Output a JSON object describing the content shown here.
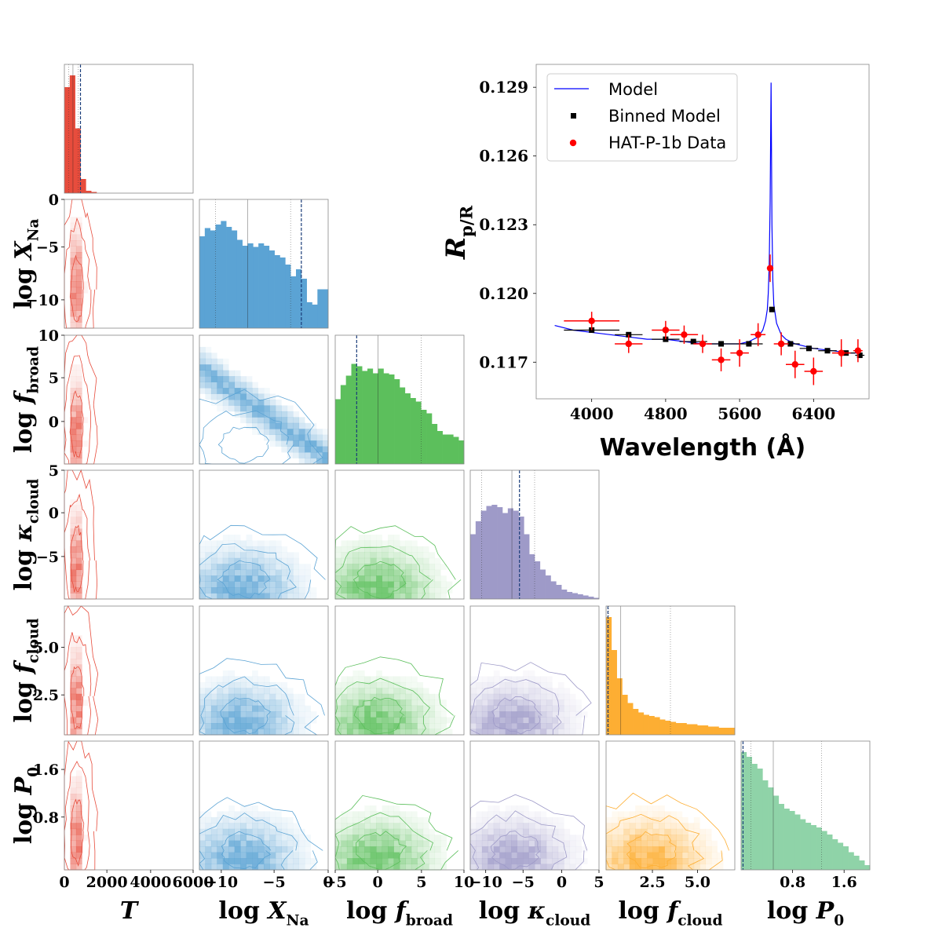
{
  "figure": {
    "kind": "corner plot with inset spectrum"
  },
  "chart_data": [
    {
      "type": "scatter",
      "name": "transmission-spectrum",
      "title": "",
      "xlabel": "Wavelength (Å)",
      "ylabel": "R_p/R_⋆",
      "xlim": [
        3400,
        7000
      ],
      "ylim": [
        0.1154,
        0.13
      ],
      "xticks": [
        4000,
        4800,
        5600,
        6400
      ],
      "xtick_labels": [
        "4000",
        "4800",
        "5600",
        "6400"
      ],
      "yticks": [
        0.117,
        0.12,
        0.123,
        0.126,
        0.129
      ],
      "ytick_labels": [
        "0.117",
        "0.120",
        "0.123",
        "0.126",
        "0.129"
      ],
      "legend_position": "top-left",
      "legend": [
        "Model",
        "Binned Model",
        "HAT-P-1b Data"
      ],
      "series": [
        {
          "name": "Model",
          "color": "#0000ff",
          "x": [
            3600,
            3800,
            4000,
            4200,
            4400,
            4600,
            4800,
            5000,
            5200,
            5400,
            5600,
            5700,
            5800,
            5850,
            5880,
            5900,
            5910,
            5920,
            5930,
            5940,
            5950,
            5960,
            5970,
            6000,
            6050,
            6100,
            6200,
            6400,
            6600,
            6800,
            6900
          ],
          "y": [
            0.1186,
            0.1184,
            0.1183,
            0.1182,
            0.1181,
            0.118,
            0.118,
            0.1179,
            0.1178,
            0.1178,
            0.1178,
            0.1179,
            0.1181,
            0.1184,
            0.1188,
            0.1193,
            0.12,
            0.1212,
            0.124,
            0.1292,
            0.123,
            0.1205,
            0.1195,
            0.1187,
            0.1182,
            0.118,
            0.1178,
            0.1176,
            0.1175,
            0.1174,
            0.1174
          ]
        },
        {
          "name": "Binned Model",
          "color": "#000000",
          "x": [
            4000,
            4400,
            4800,
            5100,
            5400,
            5700,
            5950,
            6150,
            6350,
            6550,
            6750,
            6900
          ],
          "y": [
            0.1184,
            0.1182,
            0.118,
            0.1179,
            0.1178,
            0.1178,
            0.1193,
            0.1178,
            0.1176,
            0.1175,
            0.1174,
            0.1173
          ],
          "xerr": [
            300,
            150,
            150,
            150,
            150,
            150,
            30,
            100,
            100,
            100,
            100,
            50
          ]
        },
        {
          "name": "HAT-P-1b Data",
          "color": "#ff0000",
          "x": [
            4000,
            4400,
            4800,
            5000,
            5200,
            5400,
            5600,
            5800,
            5930,
            6050,
            6200,
            6400,
            6700,
            6880
          ],
          "y": [
            0.1188,
            0.1178,
            0.1184,
            0.1182,
            0.1178,
            0.1171,
            0.1174,
            0.1182,
            0.1211,
            0.1178,
            0.1169,
            0.1166,
            0.1174,
            0.1175
          ],
          "yerr": [
            0.0004,
            0.0004,
            0.0004,
            0.0004,
            0.0004,
            0.0005,
            0.0006,
            0.0005,
            0.0006,
            0.0005,
            0.0006,
            0.0006,
            0.0006,
            0.0005
          ],
          "xerr": [
            300,
            150,
            150,
            150,
            100,
            100,
            100,
            80,
            30,
            80,
            100,
            100,
            100,
            50
          ]
        }
      ]
    },
    {
      "type": "corner",
      "name": "posterior-corner",
      "parameters": [
        {
          "key": "T",
          "label": "T",
          "range": [
            0,
            6000
          ],
          "color": "#e74c3c",
          "ticks": [
            2000,
            4000,
            6000
          ],
          "tick_labels": [
            "2000",
            "4000",
            "6000"
          ],
          "hist": [
            0.9,
            1.0,
            0.55,
            0.12,
            0.02,
            0.01,
            0.0,
            0.0,
            0.0,
            0.0,
            0.0,
            0.0,
            0.0,
            0.0,
            0.0,
            0.0,
            0.0,
            0.0,
            0.0,
            0.0,
            0.0,
            0.0,
            0.0,
            0.0
          ],
          "bins_used": 24,
          "lines": {
            "median": 400,
            "low": 200,
            "high": 650,
            "best": 750
          }
        },
        {
          "key": "logX",
          "label": "log X_Na",
          "range": [
            -12,
            0
          ],
          "color": "#5ba3d4",
          "ticks": [
            -10,
            -5,
            0
          ],
          "tick_labels": [
            "−10",
            "−5",
            "0"
          ],
          "hist": [
            0.78,
            0.85,
            0.83,
            0.88,
            0.91,
            0.86,
            0.83,
            0.75,
            0.7,
            0.72,
            0.69,
            0.72,
            0.7,
            0.66,
            0.62,
            0.6,
            0.54,
            0.44,
            0.5,
            0.42,
            0.22,
            0.2,
            0.33,
            0.33
          ],
          "lines": {
            "median": -7.5,
            "low": -10.5,
            "high": -3.5,
            "best": -2.5
          }
        },
        {
          "key": "logfb",
          "label": "log f_broad",
          "range": [
            -5,
            10
          ],
          "color": "#5cbf5c",
          "ticks": [
            -5,
            0,
            5,
            10
          ],
          "tick_labels": [
            "−5",
            "0",
            "5",
            "10"
          ],
          "hist": [
            0.55,
            0.67,
            0.75,
            0.85,
            0.83,
            0.79,
            0.81,
            0.77,
            0.81,
            0.77,
            0.76,
            0.72,
            0.65,
            0.6,
            0.56,
            0.53,
            0.46,
            0.43,
            0.34,
            0.28,
            0.25,
            0.25,
            0.23,
            0.2
          ],
          "lines": {
            "median": 0,
            "low": -2.5,
            "high": 5,
            "best": -2.5
          }
        },
        {
          "key": "logk",
          "label": "log κ_cloud",
          "range": [
            -12,
            5
          ],
          "color": "#9e9ac8",
          "ticks": [
            -10,
            -5,
            0,
            5
          ],
          "tick_labels": [
            "−10",
            "−5",
            "0",
            "5"
          ],
          "hist": [
            0.55,
            0.66,
            0.75,
            0.79,
            0.8,
            0.78,
            0.73,
            0.77,
            0.75,
            0.7,
            0.55,
            0.38,
            0.32,
            0.25,
            0.2,
            0.15,
            0.12,
            0.08,
            0.06,
            0.05,
            0.04,
            0.03,
            0.02,
            0.01
          ],
          "lines": {
            "median": -6.5,
            "low": -10.5,
            "high": -3.5,
            "best": -5.5
          }
        },
        {
          "key": "logfc",
          "label": "log f_cloud",
          "range": [
            0,
            7
          ],
          "color": "#fdae33",
          "ticks": [
            2.5,
            5.0
          ],
          "tick_labels": [
            "2.5",
            "5.0"
          ],
          "hist": [
            1.0,
            0.72,
            0.48,
            0.34,
            0.27,
            0.22,
            0.19,
            0.17,
            0.16,
            0.15,
            0.13,
            0.12,
            0.11,
            0.1,
            0.1,
            0.09,
            0.09,
            0.08,
            0.08,
            0.07,
            0.07,
            0.06,
            0.06,
            0.06
          ],
          "lines": {
            "median": 0.8,
            "low": 0.15,
            "high": 3.5,
            "best": 0.1
          }
        },
        {
          "key": "logP",
          "label": "log P_0",
          "range": [
            0,
            2
          ],
          "color": "#8fd3a8",
          "ticks": [
            0.8,
            1.6
          ],
          "tick_labels": [
            "0.8",
            "1.6"
          ],
          "hist": [
            1.0,
            0.96,
            0.9,
            0.86,
            0.76,
            0.7,
            0.63,
            0.56,
            0.52,
            0.5,
            0.47,
            0.43,
            0.4,
            0.38,
            0.36,
            0.33,
            0.3,
            0.26,
            0.23,
            0.2,
            0.15,
            0.12,
            0.08,
            0.04
          ],
          "lines": {
            "median": 0.5,
            "low": 0.15,
            "high": 1.25,
            "best": 0.03
          }
        }
      ],
      "ytick_labels": {
        "logX": [
          "0",
          "−5",
          "−10"
        ],
        "logfb": [
          "10",
          "5",
          "0"
        ],
        "logk": [
          "5",
          "0",
          "−5"
        ],
        "logfc": [
          "5.0",
          "2.5"
        ],
        "logP": [
          "1.6",
          "0.8"
        ]
      },
      "edge_tick_labels": {
        "x0": "0",
        "x_last_logX": "0",
        "x_last_logfb": "10",
        "x_last_logk": "5"
      }
    }
  ]
}
